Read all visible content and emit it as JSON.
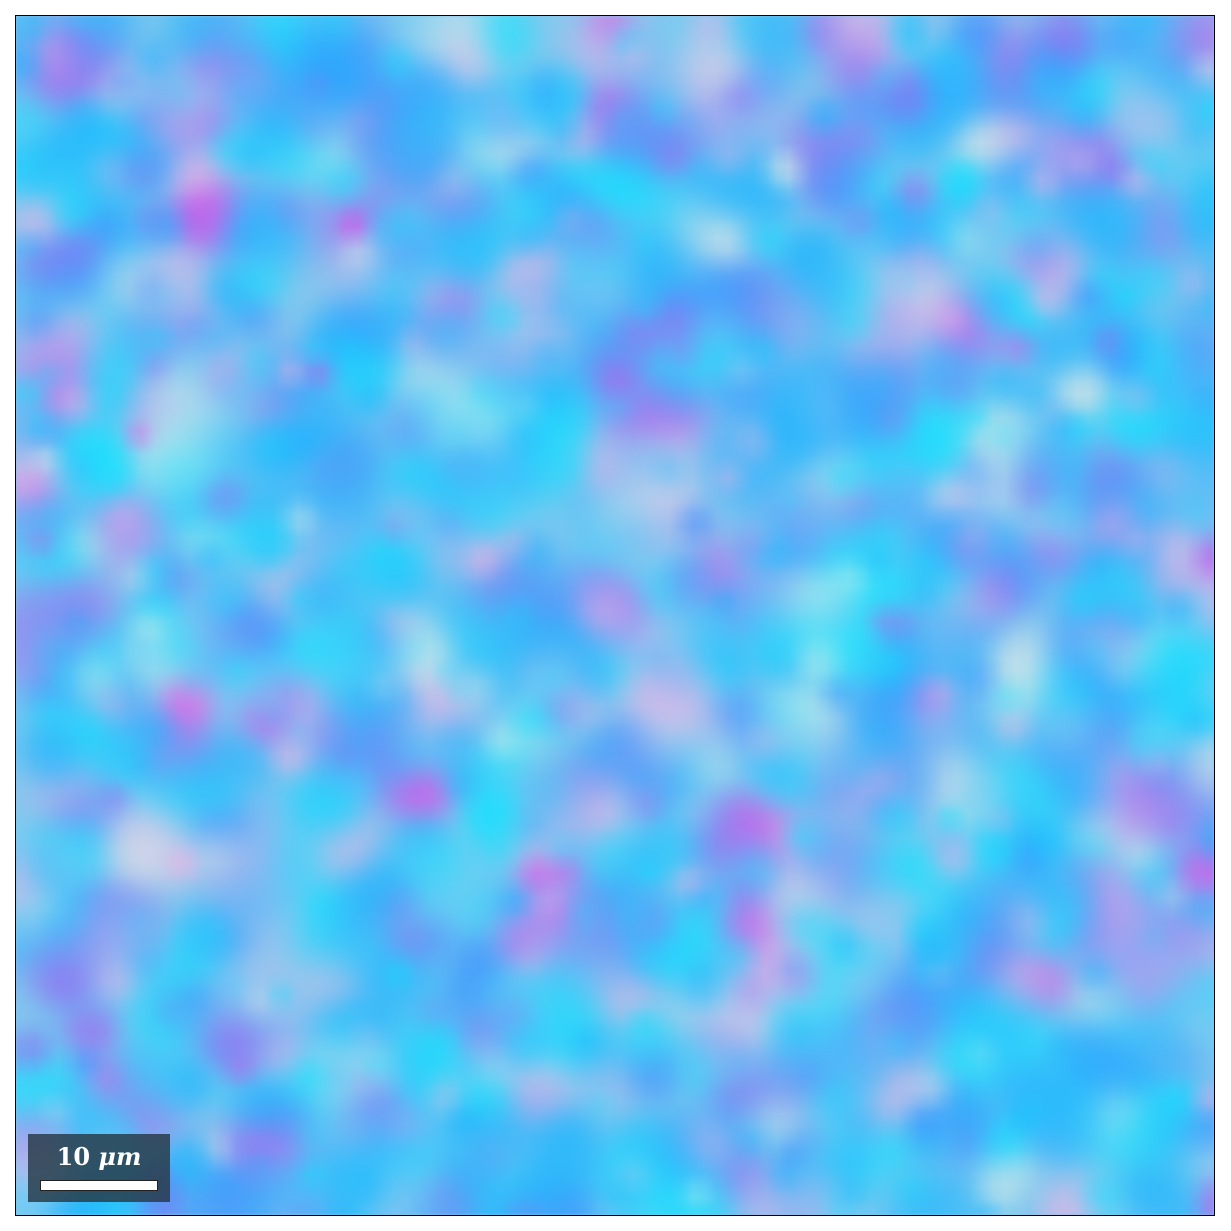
{
  "image": {
    "kind": "false-color microscopy map",
    "palette": {
      "background": "#86c8ee",
      "cyan": "#10e2ff",
      "sky_blue": "#14b4ff",
      "royal_blue": "#3c8cff",
      "violet": "#a064f0",
      "magenta": "#f03ce6",
      "pink": "#f0b4e6",
      "white_cream": "#f0f0e6"
    }
  },
  "scalebar": {
    "value": "10",
    "unit": "μm"
  }
}
